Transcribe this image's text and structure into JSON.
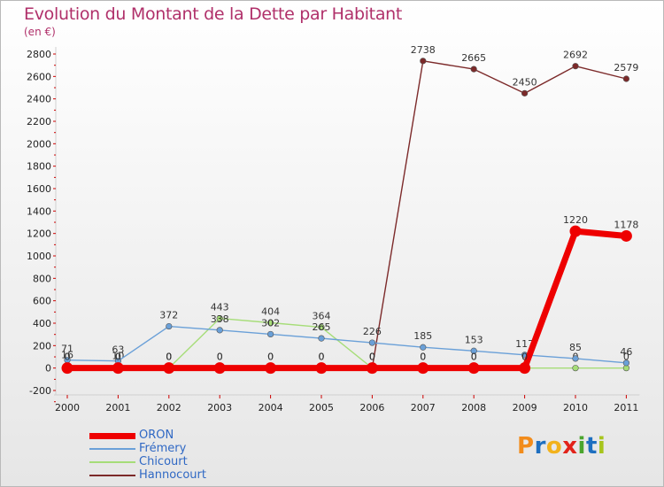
{
  "title": "Evolution du Montant de la Dette par Habitant",
  "subtitle": "(en €)",
  "logo": {
    "text": "Proxiti",
    "colors": [
      "#f28c1c",
      "#1e6fc0",
      "#f2b21c",
      "#e2231a",
      "#4aa52e",
      "#1e6fc0",
      "#a7c51c"
    ]
  },
  "chart_data": {
    "type": "line",
    "title": "Evolution du Montant de la Dette par Habitant",
    "ylabel": "(en €)",
    "xlabel": "",
    "ylim": [
      -200,
      2800
    ],
    "ytick_step": 200,
    "grid": false,
    "categories": [
      "2000",
      "2001",
      "2002",
      "2003",
      "2004",
      "2005",
      "2006",
      "2007",
      "2008",
      "2009",
      "2010",
      "2011"
    ],
    "series": [
      {
        "name": "ORON",
        "color": "#ee0000",
        "values": [
          0,
          0,
          0,
          0,
          0,
          0,
          0,
          0,
          0,
          0,
          1220,
          1178
        ]
      },
      {
        "name": "Frémery",
        "color": "#6aa0d8",
        "values": [
          71,
          63,
          372,
          338,
          302,
          265,
          226,
          185,
          153,
          117,
          85,
          46
        ]
      },
      {
        "name": "Chicourt",
        "color": "#a6dd78",
        "values": [
          16,
          10,
          0,
          443,
          404,
          364,
          0,
          0,
          0,
          0,
          0,
          0
        ]
      },
      {
        "name": "Hannocourt",
        "color": "#7c2a2a",
        "values": [
          0,
          0,
          0,
          0,
          0,
          0,
          0,
          2738,
          2665,
          2450,
          2692,
          2579
        ]
      }
    ]
  }
}
